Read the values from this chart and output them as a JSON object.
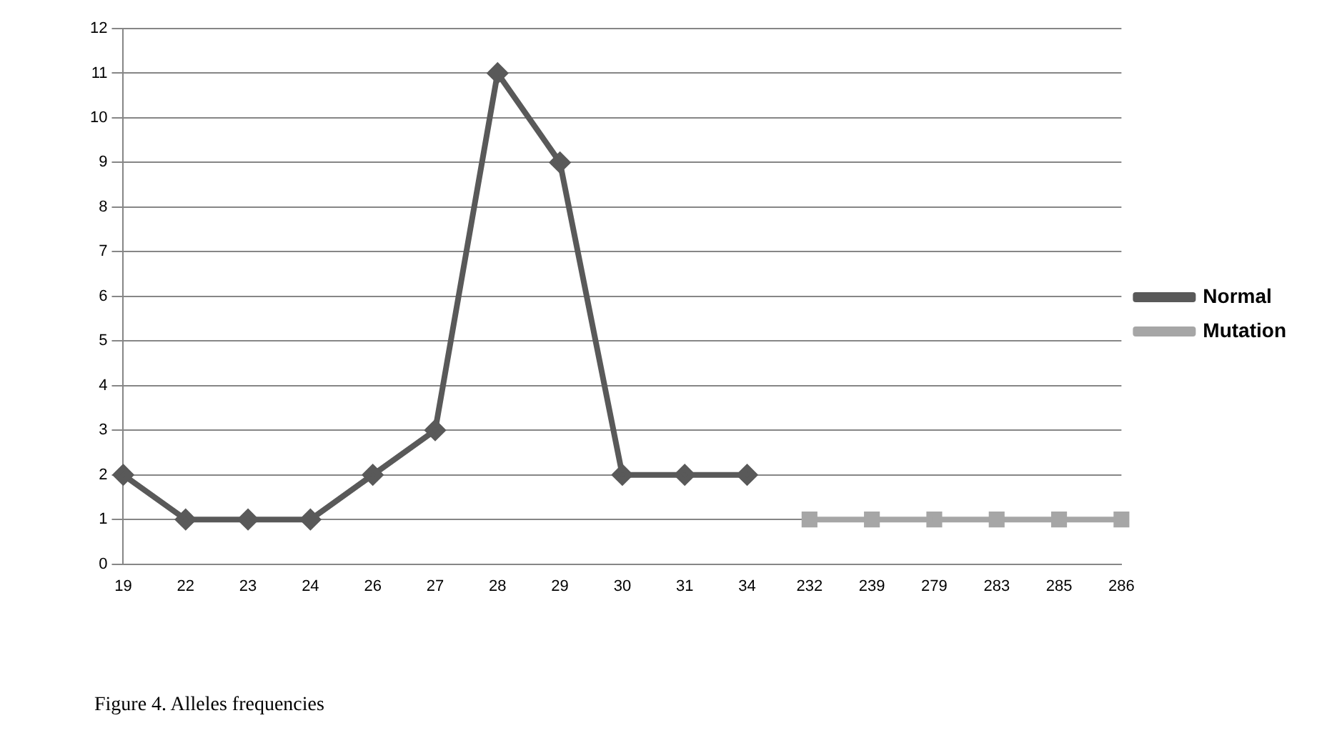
{
  "chart_data": {
    "type": "line",
    "categories": [
      "19",
      "22",
      "23",
      "24",
      "26",
      "27",
      "28",
      "29",
      "30",
      "31",
      "34",
      "232",
      "239",
      "279",
      "283",
      "285",
      "286"
    ],
    "series": [
      {
        "name": "Normal",
        "color": "#595959",
        "marker": "diamond",
        "values": [
          2,
          1,
          1,
          1,
          2,
          3,
          11,
          9,
          2,
          2,
          2,
          null,
          null,
          null,
          null,
          null,
          null
        ]
      },
      {
        "name": "Mutation",
        "color": "#a6a6a6",
        "marker": "square",
        "values": [
          null,
          null,
          null,
          null,
          null,
          null,
          null,
          null,
          null,
          null,
          null,
          1,
          1,
          1,
          1,
          1,
          1
        ]
      }
    ],
    "ylim": [
      0,
      12
    ],
    "yticks": [
      0,
      1,
      2,
      3,
      4,
      5,
      6,
      7,
      8,
      9,
      10,
      11,
      12
    ],
    "grid": "y",
    "legend": "right",
    "line_style": "solid",
    "annotations": [
      "Figure 4. Alleles frequencies"
    ]
  }
}
